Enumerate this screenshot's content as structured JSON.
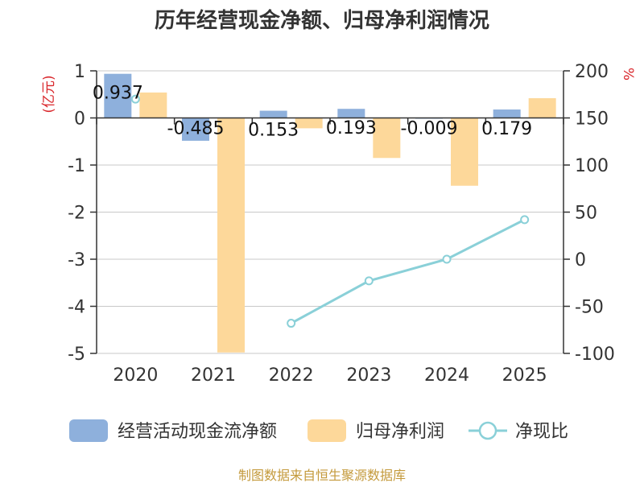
{
  "title": "历年经营现金净额、归母净利润情况",
  "source": "制图数据来自恒生聚源数据库",
  "colors": {
    "cash": "#8eb0dc",
    "profit": "#fdd89a",
    "ratio": "#8ad0d8",
    "unit": "#d9262b",
    "axis": "#333333",
    "grid": "#c8c8c8"
  },
  "chart_data": {
    "type": "bar+line",
    "title": "历年经营现金净额、归母净利润情况",
    "categories": [
      "2020",
      "2021",
      "2022",
      "2023",
      "2024",
      "2025"
    ],
    "left_axis": {
      "unit": "(亿元)",
      "range": [
        -5,
        1
      ],
      "ticks": [
        1,
        0,
        -1,
        -2,
        -3,
        -4,
        -5
      ]
    },
    "right_axis": {
      "unit": "%",
      "range": [
        -100,
        200
      ],
      "ticks": [
        200,
        150,
        100,
        50,
        0,
        -50,
        -100
      ]
    },
    "series": [
      {
        "name": "经营活动现金流净额",
        "type": "bar",
        "axis": "left",
        "values": [
          0.937,
          -0.485,
          0.153,
          0.193,
          -0.009,
          0.179
        ],
        "labels": [
          "0.937",
          "-0.485",
          "0.153",
          "0.193",
          "-0.009",
          "0.179"
        ]
      },
      {
        "name": "归母净利润",
        "type": "bar",
        "axis": "left",
        "values": [
          0.54,
          -4.98,
          -0.22,
          -0.85,
          -1.44,
          0.42
        ]
      },
      {
        "name": "净现比",
        "type": "line",
        "axis": "right",
        "values": [
          170,
          null,
          -68,
          -23,
          0,
          42
        ]
      }
    ],
    "legend_position": "bottom"
  }
}
